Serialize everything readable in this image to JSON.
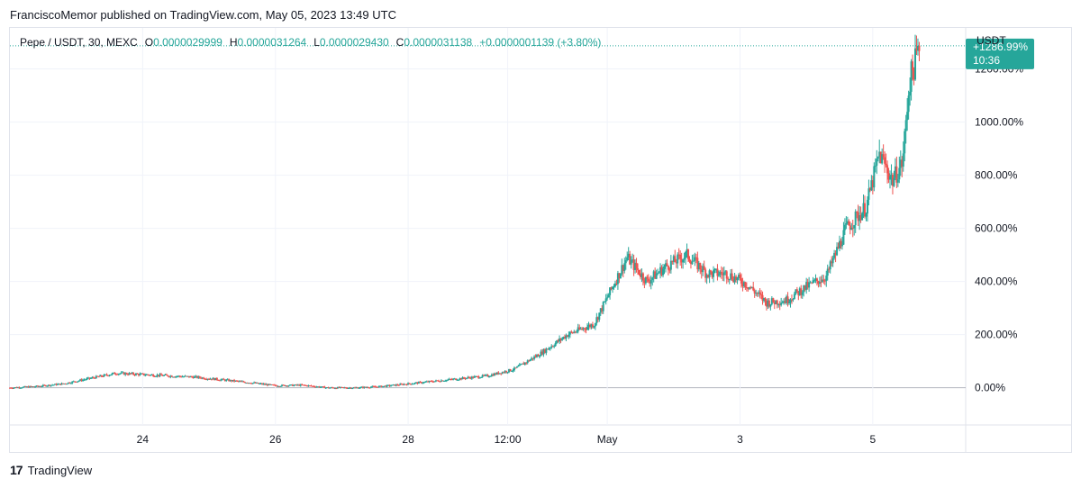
{
  "header": {
    "publisher_line": "FranciscoMemor published on TradingView.com, May 05, 2023 13:49 UTC"
  },
  "legend": {
    "symbol": "Pepe / USDT, 30, MEXC",
    "open_label": "O",
    "open": "0.0000029999",
    "high_label": "H",
    "high": "0.0000031264",
    "low_label": "L",
    "low": "0.0000029430",
    "close_label": "C",
    "close": "0.0000031138",
    "change": "+0.0000001139 (+3.80%)"
  },
  "price_axis": {
    "currency": "USDT",
    "last_label": "+1286.99%",
    "countdown": "10:36"
  },
  "footer": {
    "brand": "TradingView",
    "logo_glyph": "17"
  },
  "colors": {
    "up": "#26a69a",
    "down": "#ef5350",
    "grid": "#f0f3fa",
    "zero_line": "#b2b5be",
    "last_price_tag": "#26a69a"
  },
  "chart_data": {
    "type": "candlestick",
    "y_unit": "percent change",
    "y_ticks": [
      "0.00%",
      "200.00%",
      "400.00%",
      "600.00%",
      "800.00%",
      "1000.00%",
      "1200.00%"
    ],
    "y_tick_values": [
      0,
      200,
      400,
      600,
      800,
      1000,
      1200
    ],
    "ylim": [
      -140,
      1290
    ],
    "x_ticks": [
      "24",
      "26",
      "28",
      "12:00",
      "May",
      "3",
      "5"
    ],
    "x_tick_days": [
      2,
      4,
      6,
      7.5,
      9,
      11,
      13
    ],
    "xlim": [
      0,
      14.4
    ],
    "last_value": 1286.99,
    "grid": true,
    "close_path": [
      [
        0.0,
        0
      ],
      [
        0.4,
        5
      ],
      [
        0.8,
        15
      ],
      [
        1.2,
        35
      ],
      [
        1.6,
        55
      ],
      [
        2.0,
        50
      ],
      [
        2.4,
        45
      ],
      [
        2.8,
        40
      ],
      [
        3.2,
        30
      ],
      [
        3.6,
        20
      ],
      [
        4.0,
        8
      ],
      [
        4.4,
        10
      ],
      [
        4.8,
        0
      ],
      [
        5.2,
        0
      ],
      [
        5.6,
        5
      ],
      [
        6.0,
        15
      ],
      [
        6.4,
        25
      ],
      [
        6.8,
        35
      ],
      [
        7.2,
        45
      ],
      [
        7.6,
        70
      ],
      [
        8.0,
        130
      ],
      [
        8.4,
        200
      ],
      [
        8.8,
        240
      ],
      [
        9.0,
        340
      ],
      [
        9.3,
        490
      ],
      [
        9.6,
        400
      ],
      [
        9.9,
        460
      ],
      [
        10.2,
        500
      ],
      [
        10.5,
        430
      ],
      [
        10.8,
        430
      ],
      [
        11.1,
        390
      ],
      [
        11.4,
        320
      ],
      [
        11.7,
        330
      ],
      [
        12.0,
        380
      ],
      [
        12.3,
        420
      ],
      [
        12.6,
        600
      ],
      [
        12.9,
        680
      ],
      [
        13.1,
        880
      ],
      [
        13.3,
        780
      ],
      [
        13.45,
        850
      ],
      [
        13.55,
        1150
      ],
      [
        13.7,
        1280
      ]
    ]
  }
}
